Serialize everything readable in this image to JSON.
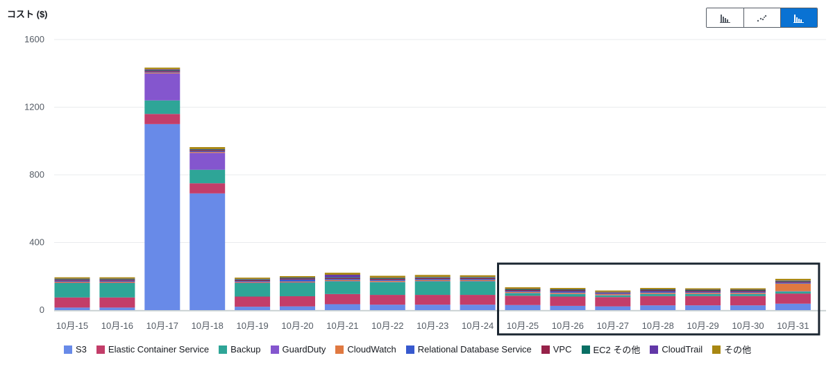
{
  "header": {
    "y_axis_title": "コスト ($)"
  },
  "view_toggle": {
    "options": [
      {
        "icon": "bar-chart-icon",
        "active": false
      },
      {
        "icon": "line-chart-icon",
        "active": false
      },
      {
        "icon": "stacked-bar-chart-icon",
        "active": true
      }
    ]
  },
  "colors": {
    "accent": "#0972d3",
    "highlight_box": "#1b2631",
    "gridline": "#e9ebed"
  },
  "chart_data": {
    "type": "bar",
    "stacked": true,
    "categories": [
      "10月-15",
      "10月-16",
      "10月-17",
      "10月-18",
      "10月-19",
      "10月-20",
      "10月-21",
      "10月-22",
      "10月-23",
      "10月-24",
      "10月-25",
      "10月-26",
      "10月-27",
      "10月-28",
      "10月-29",
      "10月-30",
      "10月-31"
    ],
    "ylim": [
      0,
      1600
    ],
    "yticks": [
      0,
      400,
      800,
      1200,
      1600
    ],
    "grid": true,
    "legend_position": "bottom",
    "highlight_range": [
      "10月-25",
      "10月-31"
    ],
    "series": [
      {
        "name": "S3",
        "color": "#688ae8",
        "values": [
          15,
          15,
          1100,
          690,
          20,
          22,
          35,
          32,
          32,
          32,
          30,
          25,
          22,
          28,
          28,
          28,
          38
        ]
      },
      {
        "name": "Elastic Container Service",
        "color": "#c33d69",
        "values": [
          60,
          60,
          60,
          60,
          60,
          60,
          60,
          58,
          58,
          58,
          55,
          55,
          55,
          55,
          55,
          55,
          60
        ]
      },
      {
        "name": "Backup",
        "color": "#2ea597",
        "values": [
          85,
          85,
          80,
          80,
          80,
          80,
          75,
          75,
          80,
          80,
          15,
          15,
          10,
          12,
          12,
          12,
          12
        ]
      },
      {
        "name": "GuardDuty",
        "color": "#8456ce",
        "values": [
          2,
          2,
          160,
          100,
          2,
          2,
          2,
          2,
          2,
          2,
          2,
          2,
          2,
          2,
          2,
          2,
          2
        ]
      },
      {
        "name": "CloudWatch",
        "color": "#e07941",
        "values": [
          6,
          6,
          5,
          5,
          5,
          5,
          6,
          6,
          6,
          6,
          6,
          6,
          6,
          6,
          6,
          6,
          45
        ]
      },
      {
        "name": "Relational Database Service",
        "color": "#3759ce",
        "values": [
          6,
          6,
          5,
          5,
          5,
          12,
          6,
          6,
          6,
          6,
          5,
          8,
          5,
          8,
          6,
          6,
          6
        ]
      },
      {
        "name": "VPC",
        "color": "#962249",
        "values": [
          6,
          6,
          6,
          6,
          6,
          6,
          6,
          6,
          6,
          6,
          6,
          6,
          4,
          6,
          6,
          6,
          6
        ]
      },
      {
        "name": "EC2 その他",
        "color": "#096f64",
        "values": [
          4,
          4,
          4,
          4,
          4,
          4,
          4,
          4,
          4,
          4,
          4,
          4,
          2,
          4,
          4,
          4,
          4
        ]
      },
      {
        "name": "CloudTrail",
        "color": "#6237a7",
        "values": [
          2,
          2,
          4,
          2,
          2,
          2,
          15,
          2,
          2,
          2,
          2,
          2,
          2,
          2,
          2,
          2,
          2
        ]
      },
      {
        "name": "その他",
        "color": "#a88712",
        "values": [
          8,
          8,
          10,
          12,
          8,
          8,
          12,
          12,
          12,
          10,
          10,
          8,
          8,
          8,
          8,
          8,
          10
        ]
      }
    ]
  }
}
